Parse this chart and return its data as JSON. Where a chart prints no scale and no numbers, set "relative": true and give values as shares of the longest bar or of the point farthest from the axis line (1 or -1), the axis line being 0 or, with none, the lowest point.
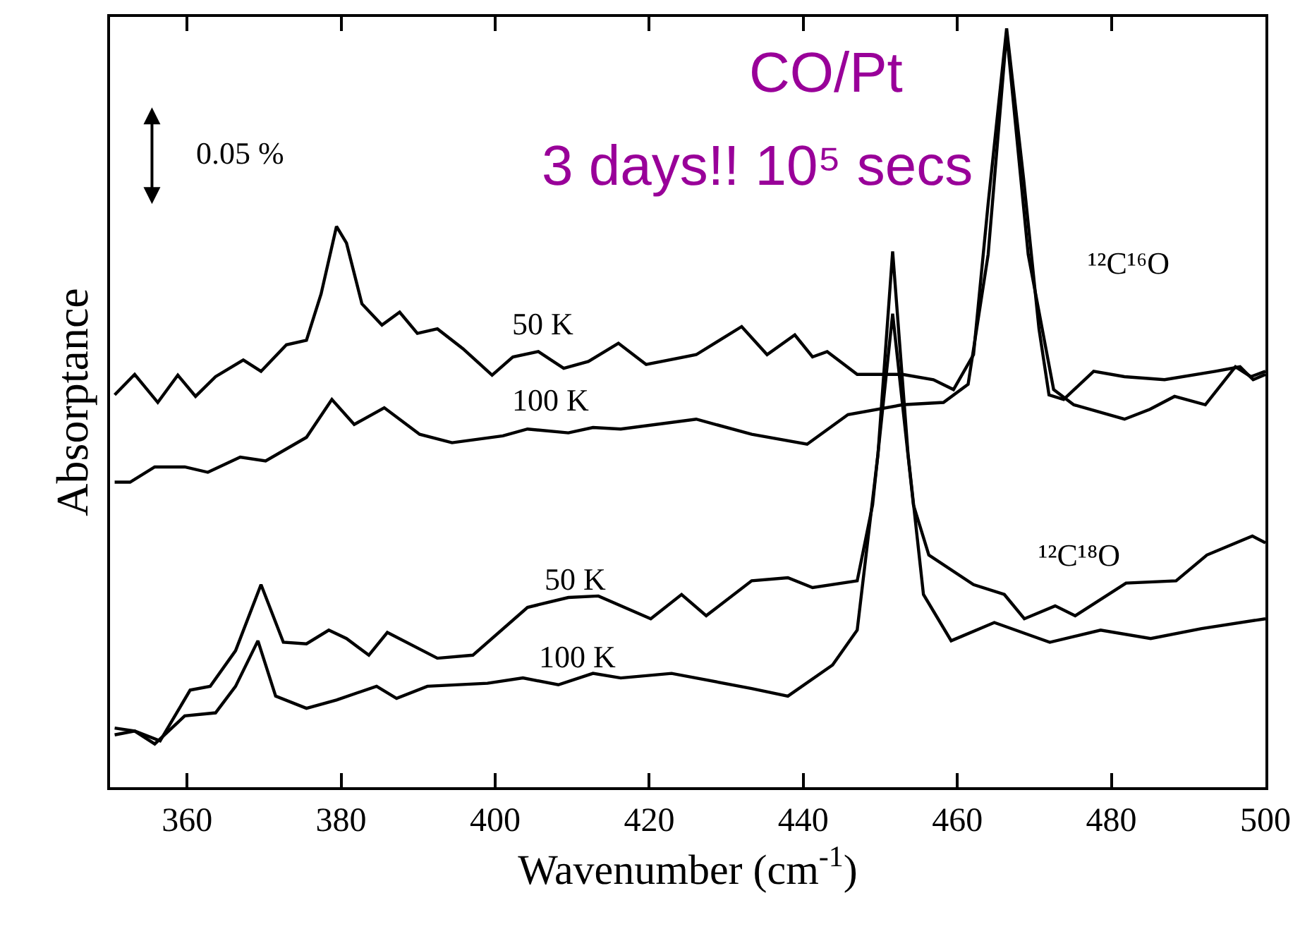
{
  "chart_data": {
    "type": "line",
    "relative": true,
    "title": "CO/Pt",
    "subtitle": "3 days!! 10⁵ secs",
    "xlabel": "Wavenumber (cm$^{-1}$)",
    "ylabel": "Absorptance",
    "xlim": [
      350,
      500
    ],
    "xticks": [
      360,
      380,
      400,
      420,
      440,
      460,
      480,
      500
    ],
    "marker": "none",
    "line_style": "solid",
    "series": [
      {
        "color": "#000000",
        "x": [
          350.6,
          353.2,
          356.2,
          358.8,
          361.1,
          363.7,
          367.3,
          369.6,
          372.9,
          375.5,
          377.4,
          379.4,
          380.7,
          382.7,
          385.3,
          387.6,
          389.9,
          392.5,
          395.8,
          399.6,
          402.3,
          405.6,
          408.9,
          412.1,
          416.0,
          419.6,
          426.1,
          432.0,
          435.3,
          438.9,
          441.2,
          443.1,
          447.0,
          452.9,
          456.9,
          459.5,
          462.1,
          464.0,
          466.4,
          468.6,
          470.6,
          471.9,
          473.8,
          477.7,
          481.7,
          486.9,
          493.5,
          496.7,
          498.4,
          500
        ],
        "values": [
          0.517,
          0.544,
          0.507,
          0.543,
          0.515,
          0.541,
          0.563,
          0.548,
          0.583,
          0.589,
          0.65,
          0.739,
          0.717,
          0.637,
          0.609,
          0.626,
          0.598,
          0.604,
          0.578,
          0.543,
          0.567,
          0.574,
          0.552,
          0.561,
          0.585,
          0.557,
          0.57,
          0.607,
          0.57,
          0.596,
          0.567,
          0.574,
          0.544,
          0.544,
          0.537,
          0.524,
          0.57,
          0.769,
          1.0,
          0.802,
          0.604,
          0.517,
          0.511,
          0.548,
          0.541,
          0.537,
          0.548,
          0.554,
          0.537,
          0.544
        ]
      },
      {
        "color": "#000000",
        "x": [
          350.6,
          352.6,
          355.8,
          359.7,
          362.7,
          366.9,
          370.2,
          375.5,
          378.8,
          381.7,
          385.6,
          390.2,
          394.4,
          401.0,
          404.2,
          409.5,
          412.7,
          416.3,
          426.1,
          433.3,
          440.5,
          445.8,
          452.9,
          458.2,
          461.4,
          464.0,
          466.4,
          469.2,
          472.5,
          475.1,
          481.7,
          485.0,
          488.2,
          492.2,
          496.1,
          498.1,
          500
        ],
        "values": [
          0.402,
          0.402,
          0.422,
          0.422,
          0.415,
          0.435,
          0.43,
          0.461,
          0.511,
          0.478,
          0.5,
          0.465,
          0.454,
          0.463,
          0.472,
          0.467,
          0.474,
          0.472,
          0.485,
          0.465,
          0.452,
          0.491,
          0.504,
          0.507,
          0.531,
          0.702,
          0.994,
          0.702,
          0.524,
          0.504,
          0.485,
          0.498,
          0.515,
          0.504,
          0.554,
          0.541,
          0.548
        ]
      },
      {
        "color": "#000000",
        "x": [
          350.6,
          353.2,
          356.5,
          360.4,
          363.0,
          366.3,
          369.6,
          372.5,
          375.5,
          378.4,
          380.7,
          383.6,
          386.0,
          392.5,
          397.1,
          404.2,
          409.5,
          413.4,
          420.2,
          424.2,
          427.4,
          433.3,
          438.0,
          441.2,
          447.0,
          449.0,
          451.6,
          454.3,
          456.3,
          462.1,
          466.1,
          468.7,
          472.7,
          475.3,
          481.9,
          488.4,
          492.4,
          498.3,
          500
        ],
        "values": [
          0.069,
          0.074,
          0.061,
          0.128,
          0.133,
          0.18,
          0.267,
          0.191,
          0.189,
          0.207,
          0.196,
          0.174,
          0.204,
          0.17,
          0.174,
          0.237,
          0.25,
          0.252,
          0.222,
          0.254,
          0.226,
          0.272,
          0.276,
          0.263,
          0.272,
          0.372,
          0.624,
          0.372,
          0.306,
          0.267,
          0.254,
          0.222,
          0.239,
          0.226,
          0.269,
          0.272,
          0.306,
          0.331,
          0.322
        ]
      },
      {
        "color": "#000000",
        "x": [
          350.6,
          353.2,
          355.8,
          359.7,
          363.7,
          366.3,
          369.2,
          371.5,
          375.5,
          379.4,
          384.6,
          387.2,
          391.2,
          399.0,
          403.6,
          408.2,
          412.7,
          416.3,
          422.9,
          433.3,
          438.0,
          443.8,
          447.0,
          449.7,
          451.6,
          453.6,
          455.6,
          459.2,
          464.8,
          472.0,
          478.6,
          485.1,
          491.7,
          500
        ],
        "values": [
          0.078,
          0.074,
          0.057,
          0.094,
          0.098,
          0.133,
          0.193,
          0.12,
          0.104,
          0.115,
          0.133,
          0.117,
          0.133,
          0.137,
          0.144,
          0.135,
          0.15,
          0.144,
          0.15,
          0.13,
          0.12,
          0.161,
          0.207,
          0.439,
          0.706,
          0.439,
          0.254,
          0.193,
          0.217,
          0.191,
          0.207,
          0.196,
          0.209,
          0.222
        ]
      }
    ],
    "annotations": [
      "0.05 %",
      "50 K",
      "100 K",
      "50 K",
      "100 K",
      "¹²C¹⁶O",
      "¹²C¹⁸O"
    ]
  }
}
